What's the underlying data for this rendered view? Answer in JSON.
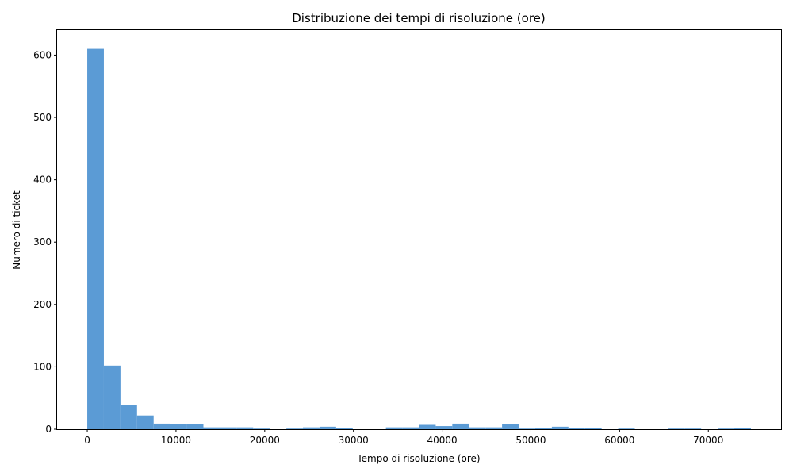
{
  "chart_data": {
    "type": "bar",
    "title": "Distribuzione dei tempi di risoluzione (ore)",
    "xlabel": "Tempo di risoluzione (ore)",
    "ylabel": "Numero di ticket",
    "xlim": [
      -3400,
      78200
    ],
    "ylim": [
      0,
      640
    ],
    "x_ticks": [
      0,
      10000,
      20000,
      30000,
      40000,
      50000,
      60000,
      70000
    ],
    "y_ticks": [
      0,
      100,
      200,
      300,
      400,
      500,
      600
    ],
    "bar_color": "#5b9bd5",
    "grid": false,
    "bins": [
      {
        "start": 0,
        "end": 1870,
        "count": 610
      },
      {
        "start": 1870,
        "end": 3740,
        "count": 102
      },
      {
        "start": 3740,
        "end": 5610,
        "count": 39
      },
      {
        "start": 5610,
        "end": 7480,
        "count": 22
      },
      {
        "start": 7480,
        "end": 9350,
        "count": 9
      },
      {
        "start": 9350,
        "end": 11220,
        "count": 8
      },
      {
        "start": 11220,
        "end": 13090,
        "count": 8
      },
      {
        "start": 13090,
        "end": 14960,
        "count": 3
      },
      {
        "start": 14960,
        "end": 16830,
        "count": 3
      },
      {
        "start": 16830,
        "end": 18700,
        "count": 3
      },
      {
        "start": 18700,
        "end": 20570,
        "count": 1
      },
      {
        "start": 20570,
        "end": 22440,
        "count": 0
      },
      {
        "start": 22440,
        "end": 24310,
        "count": 1
      },
      {
        "start": 24310,
        "end": 26180,
        "count": 3
      },
      {
        "start": 26180,
        "end": 28050,
        "count": 4
      },
      {
        "start": 28050,
        "end": 29920,
        "count": 2
      },
      {
        "start": 29920,
        "end": 31790,
        "count": 0
      },
      {
        "start": 31790,
        "end": 33660,
        "count": 0
      },
      {
        "start": 33660,
        "end": 35530,
        "count": 3
      },
      {
        "start": 35530,
        "end": 37400,
        "count": 3
      },
      {
        "start": 37400,
        "end": 39270,
        "count": 7
      },
      {
        "start": 39270,
        "end": 41140,
        "count": 5
      },
      {
        "start": 41140,
        "end": 43010,
        "count": 9
      },
      {
        "start": 43010,
        "end": 44880,
        "count": 3
      },
      {
        "start": 44880,
        "end": 46750,
        "count": 3
      },
      {
        "start": 46750,
        "end": 48620,
        "count": 8
      },
      {
        "start": 48620,
        "end": 50490,
        "count": 1
      },
      {
        "start": 50490,
        "end": 52360,
        "count": 2
      },
      {
        "start": 52360,
        "end": 54230,
        "count": 4
      },
      {
        "start": 54230,
        "end": 56100,
        "count": 2
      },
      {
        "start": 56100,
        "end": 57970,
        "count": 2
      },
      {
        "start": 57970,
        "end": 59840,
        "count": 0
      },
      {
        "start": 59840,
        "end": 61710,
        "count": 1
      },
      {
        "start": 61710,
        "end": 63580,
        "count": 0
      },
      {
        "start": 63580,
        "end": 65450,
        "count": 0
      },
      {
        "start": 65450,
        "end": 67320,
        "count": 1
      },
      {
        "start": 67320,
        "end": 69190,
        "count": 1
      },
      {
        "start": 69190,
        "end": 71060,
        "count": 0
      },
      {
        "start": 71060,
        "end": 72930,
        "count": 1
      },
      {
        "start": 72930,
        "end": 74800,
        "count": 2
      }
    ]
  }
}
